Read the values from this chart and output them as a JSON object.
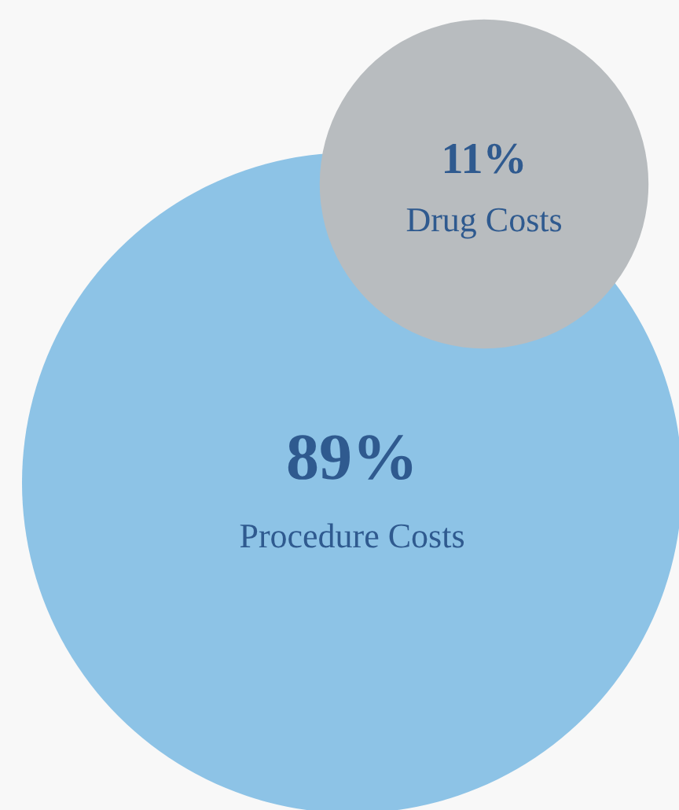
{
  "chart_data": {
    "type": "other",
    "categories": [
      "Procedure Costs",
      "Drug Costs"
    ],
    "values": [
      89,
      11
    ],
    "value_labels": [
      "89%",
      "11%"
    ],
    "colors": [
      "#8dc3e6",
      "#b8bcbf"
    ]
  }
}
